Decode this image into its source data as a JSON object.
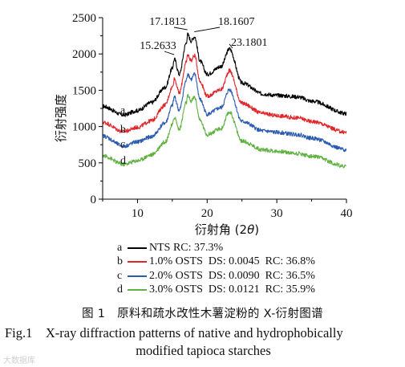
{
  "chart_data": {
    "type": "line",
    "xlabel": "衍射角 (2θ)",
    "ylabel": "衍射强度",
    "xlim": [
      5,
      40
    ],
    "ylim": [
      0,
      2500
    ],
    "xticks": [
      10,
      20,
      30,
      40
    ],
    "yticks": [
      0,
      500,
      1000,
      1500,
      2000,
      2500
    ],
    "peak_annotations": [
      {
        "label": "15.2633",
        "x": 15.26
      },
      {
        "label": "17.1813",
        "x": 17.18
      },
      {
        "label": "18.1607",
        "x": 18.16
      },
      {
        "label": "23.1801",
        "x": 23.18
      }
    ],
    "series": [
      {
        "letter": "a",
        "label": "NTS RC: 37.3%",
        "color": "#000000",
        "baseline": 1220,
        "x": [
          5,
          8,
          10,
          12,
          14,
          15,
          15.3,
          16,
          17,
          17.2,
          17.7,
          18.2,
          19,
          20,
          22,
          23.2,
          25,
          28,
          30,
          33,
          35,
          40
        ],
        "y": [
          1280,
          1160,
          1220,
          1330,
          1540,
          1800,
          1930,
          1720,
          2150,
          2270,
          2180,
          2240,
          1900,
          1720,
          1830,
          2070,
          1600,
          1450,
          1430,
          1410,
          1350,
          1180
        ]
      },
      {
        "letter": "b",
        "label": "1.0% OSTS  DS: 0.0045  RC: 36.8%",
        "color": "#e0262a",
        "baseline": 960,
        "x": [
          5,
          8,
          10,
          12,
          14,
          15,
          15.3,
          16,
          17,
          17.2,
          17.7,
          18.2,
          19,
          20,
          22,
          23.2,
          25,
          28,
          30,
          33,
          35,
          40
        ],
        "y": [
          1060,
          930,
          990,
          1080,
          1300,
          1540,
          1660,
          1460,
          1880,
          1990,
          1910,
          1980,
          1620,
          1420,
          1510,
          1770,
          1320,
          1180,
          1150,
          1120,
          1070,
          920
        ]
      },
      {
        "letter": "c",
        "label": "2.0% OSTS  DS: 0.0090  RC: 36.5%",
        "color": "#2a5bb0",
        "baseline": 760,
        "x": [
          5,
          8,
          10,
          12,
          14,
          15,
          15.3,
          16,
          17,
          17.2,
          17.7,
          18.2,
          19,
          20,
          22,
          23.2,
          25,
          28,
          30,
          33,
          35,
          40
        ],
        "y": [
          870,
          730,
          790,
          860,
          1050,
          1290,
          1410,
          1220,
          1630,
          1730,
          1650,
          1720,
          1370,
          1170,
          1260,
          1510,
          1070,
          940,
          920,
          890,
          840,
          680
        ]
      },
      {
        "letter": "d",
        "label": "3.0% OSTS  DS: 0.0121  RC: 35.9%",
        "color": "#5fb141",
        "baseline": 530,
        "x": [
          5,
          8,
          10,
          12,
          14,
          15,
          15.3,
          16,
          17,
          17.2,
          17.7,
          18.2,
          19,
          20,
          22,
          23.2,
          25,
          28,
          30,
          33,
          35,
          40
        ],
        "y": [
          600,
          480,
          530,
          610,
          790,
          1020,
          1130,
          960,
          1330,
          1420,
          1350,
          1410,
          1080,
          890,
          970,
          1200,
          800,
          680,
          660,
          630,
          590,
          450
        ]
      }
    ]
  },
  "caption": {
    "cn": "图 1　原料和疏水改性木薯淀粉的 X-衍射图谱",
    "en_line1": "Fig.1　X-ray diffraction patterns of native and hydrophobically",
    "en_line2": "modified tapioca starches"
  },
  "watermark": "大数据库"
}
